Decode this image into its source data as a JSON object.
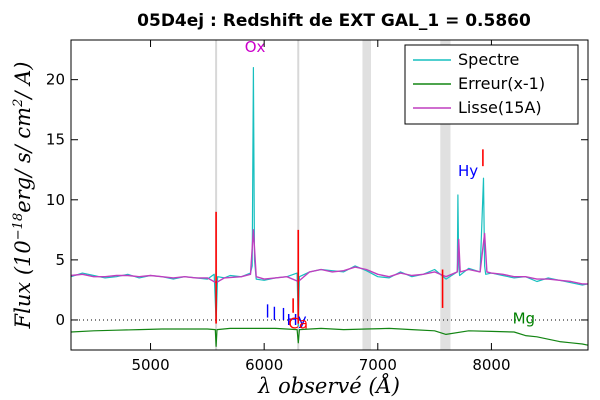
{
  "chart_data": {
    "type": "line",
    "title": "05D4ej : Redshift de EXT GAL_1 = 0.5860",
    "xlabel": "λ observé (Å)",
    "ylabel": "Flux (10^-18 erg/s/cm^2/A)",
    "ylabel_parts": {
      "prefix": "Flux (10",
      "exponent": "−18",
      "suffix": "erg/ s/ cm",
      "exponent2": "2",
      "suffix2": "/ A)"
    },
    "xlim": [
      4300,
      8850
    ],
    "ylim": [
      -2.5,
      23.3
    ],
    "xticks": [
      5000,
      6000,
      7000,
      8000
    ],
    "yticks": [
      0,
      5,
      10,
      15,
      20
    ],
    "tick_labels_x": [
      "5000",
      "6000",
      "7000",
      "8000"
    ],
    "tick_labels_y": [
      "0",
      "5",
      "10",
      "15",
      "20"
    ],
    "legend": {
      "position": "top-right",
      "entries": [
        "Spectre",
        "Erreur(x-1)",
        "Lisse(15A)"
      ]
    },
    "colors": {
      "spectre": "#17bfbf",
      "erreur": "#138513",
      "lisse": "#bf3fbf",
      "sky_band": "#e0e0e0",
      "sky_line": "#d8d8d8",
      "red_mark": "#ff0000",
      "blue_label": "#0000ff",
      "magenta_label": "#cc00cc",
      "green_label": "#008000"
    },
    "sky_lines": [
      5577,
      6300
    ],
    "sky_bands": [
      [
        6865,
        6940
      ],
      [
        7550,
        7640
      ]
    ],
    "zero_line": 0,
    "series": [
      {
        "name": "Spectre",
        "x": [
          4300,
          4400,
          4500,
          4600,
          4700,
          4800,
          4900,
          5000,
          5100,
          5200,
          5300,
          5400,
          5500,
          5560,
          5577,
          5590,
          5650,
          5700,
          5800,
          5880,
          5895,
          5905,
          5915,
          5930,
          6000,
          6100,
          6200,
          6290,
          6300,
          6310,
          6400,
          6500,
          6600,
          6700,
          6800,
          6900,
          7000,
          7100,
          7200,
          7300,
          7400,
          7500,
          7600,
          7700,
          7705,
          7712,
          7720,
          7800,
          7900,
          7930,
          7940,
          7950,
          8000,
          8100,
          8200,
          8300,
          8400,
          8500,
          8600,
          8700,
          8800,
          8850
        ],
        "y": [
          3.6,
          3.9,
          3.7,
          3.5,
          3.6,
          3.8,
          3.5,
          3.7,
          3.6,
          3.4,
          3.6,
          3.5,
          3.4,
          3.8,
          -0.1,
          3.6,
          3.5,
          3.7,
          3.6,
          3.9,
          4.5,
          21.0,
          5.0,
          3.4,
          3.3,
          3.5,
          3.6,
          3.9,
          -0.5,
          3.6,
          4.0,
          4.2,
          4.1,
          4.0,
          4.5,
          4.1,
          3.6,
          3.5,
          4.0,
          3.6,
          3.8,
          4.2,
          3.4,
          4.0,
          10.4,
          4.6,
          3.7,
          4.3,
          4.0,
          11.8,
          4.5,
          3.8,
          3.9,
          3.7,
          3.5,
          3.6,
          3.2,
          3.5,
          3.3,
          3.1,
          2.9,
          3.0
        ]
      },
      {
        "name": "Erreur(x-1)",
        "x": [
          4300,
          4500,
          4700,
          4900,
          5100,
          5300,
          5500,
          5570,
          5577,
          5585,
          5700,
          5900,
          6100,
          6290,
          6300,
          6310,
          6500,
          6700,
          6900,
          7100,
          7300,
          7500,
          7600,
          7800,
          8000,
          8200,
          8300,
          8400,
          8500,
          8600,
          8700,
          8800,
          8850
        ],
        "y": [
          -1.0,
          -0.9,
          -0.85,
          -0.8,
          -0.75,
          -0.75,
          -0.75,
          -0.8,
          -2.2,
          -0.8,
          -0.7,
          -0.7,
          -0.7,
          -0.8,
          -1.9,
          -0.8,
          -0.7,
          -0.8,
          -0.75,
          -0.7,
          -0.8,
          -0.9,
          -1.2,
          -0.9,
          -0.95,
          -1.0,
          -1.3,
          -1.4,
          -1.6,
          -1.8,
          -1.9,
          -2.0,
          -2.1
        ]
      },
      {
        "name": "Lisse(15A)",
        "x": [
          4300,
          4400,
          4500,
          4600,
          4700,
          4800,
          4900,
          5000,
          5100,
          5200,
          5300,
          5400,
          5500,
          5577,
          5650,
          5800,
          5880,
          5905,
          5930,
          6000,
          6100,
          6200,
          6300,
          6400,
          6500,
          6600,
          6700,
          6800,
          6900,
          7000,
          7100,
          7200,
          7300,
          7400,
          7500,
          7600,
          7700,
          7712,
          7725,
          7800,
          7900,
          7940,
          7960,
          8000,
          8100,
          8200,
          8300,
          8400,
          8500,
          8600,
          8700,
          8800,
          8850
        ],
        "y": [
          3.7,
          3.8,
          3.6,
          3.6,
          3.7,
          3.7,
          3.6,
          3.7,
          3.6,
          3.5,
          3.6,
          3.5,
          3.5,
          3.1,
          3.5,
          3.6,
          3.8,
          7.5,
          3.6,
          3.4,
          3.5,
          3.6,
          3.2,
          4.0,
          4.2,
          4.0,
          4.1,
          4.4,
          4.2,
          3.8,
          3.6,
          3.9,
          3.7,
          3.8,
          4.0,
          3.6,
          4.0,
          6.7,
          4.0,
          4.2,
          4.0,
          7.2,
          4.0,
          3.9,
          3.8,
          3.6,
          3.6,
          3.4,
          3.4,
          3.3,
          3.2,
          3.0,
          3.0
        ]
      }
    ],
    "red_marks": [
      {
        "x": 5577,
        "y0": -0.3,
        "y1": 9.0
      },
      {
        "x": 6300,
        "y0": -0.3,
        "y1": 7.5
      },
      {
        "x": 6255,
        "y0": 0.6,
        "y1": 1.8
      },
      {
        "x": 7570,
        "y0": 1.0,
        "y1": 4.2
      },
      {
        "x": 7925,
        "y0": 12.8,
        "y1": 14.2
      }
    ],
    "annotations": [
      {
        "text": "Ox",
        "x": 5920,
        "y": 22.3,
        "color": "magenta"
      },
      {
        "text": "Hy",
        "x": 7795,
        "y": 12.0,
        "color": "blue"
      },
      {
        "text": "Hy",
        "x": 6285,
        "y": -0.4,
        "color": "blue"
      },
      {
        "text": "Ca",
        "x": 6300,
        "y": -0.7,
        "color": "red"
      },
      {
        "text": "Mg",
        "x": 8285,
        "y": -0.3,
        "color": "green"
      }
    ],
    "blue_ticks": [
      {
        "x": 6030,
        "y0": 0.2,
        "y1": 1.3
      },
      {
        "x": 6090,
        "y0": 0.0,
        "y1": 1.1
      },
      {
        "x": 6170,
        "y0": 0.0,
        "y1": 1.0
      }
    ]
  }
}
